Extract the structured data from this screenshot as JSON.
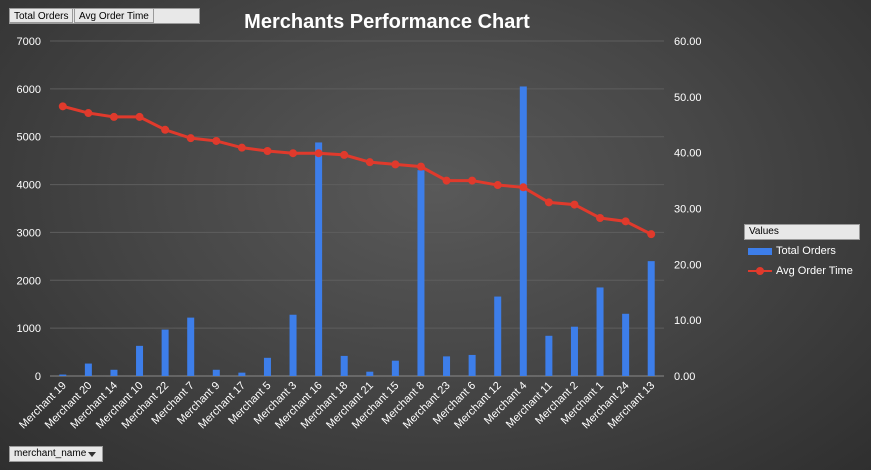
{
  "field_buttons": [
    "Total Orders",
    "Avg Order Time"
  ],
  "row_field_button": "merchant_name",
  "legend_title": "Values",
  "colors": {
    "bar": "#3d7eea",
    "line": "#e03a2c"
  },
  "chart_data": {
    "type": "bar",
    "title": "Merchants Performance Chart",
    "categories": [
      "Merchant 19",
      "Merchant 20",
      "Merchant 14",
      "Merchant 10",
      "Merchant 22",
      "Merchant 7",
      "Merchant 9",
      "Merchant 17",
      "Merchant 5",
      "Merchant 3",
      "Merchant 16",
      "Merchant 18",
      "Merchant 21",
      "Merchant 15",
      "Merchant 8",
      "Merchant 23",
      "Merchant 6",
      "Merchant 12",
      "Merchant 4",
      "Merchant 11",
      "Merchant 2",
      "Merchant 1",
      "Merchant 24",
      "Merchant 13"
    ],
    "series": [
      {
        "name": "Total Orders",
        "type": "bar",
        "axis": "left",
        "values": [
          30,
          260,
          130,
          630,
          970,
          1220,
          130,
          70,
          380,
          1280,
          4880,
          420,
          90,
          320,
          4300,
          410,
          440,
          1660,
          6050,
          840,
          1030,
          1850,
          1300,
          2400
        ]
      },
      {
        "name": "Avg Order Time",
        "type": "line",
        "axis": "right",
        "values": [
          48.3,
          47.1,
          46.4,
          46.4,
          44.1,
          42.6,
          42.1,
          40.9,
          40.3,
          39.9,
          39.9,
          39.6,
          38.3,
          37.9,
          37.5,
          35.0,
          35.0,
          34.2,
          33.8,
          31.1,
          30.7,
          28.3,
          27.7,
          25.4
        ]
      }
    ],
    "y_left": {
      "min": 0,
      "max": 7000,
      "ticks": [
        "0",
        "1000",
        "2000",
        "3000",
        "4000",
        "5000",
        "6000",
        "7000"
      ]
    },
    "y_right": {
      "min": 0,
      "max": 60,
      "ticks": [
        "0.00",
        "10.00",
        "20.00",
        "30.00",
        "40.00",
        "50.00",
        "60.00"
      ]
    },
    "grid": true,
    "legend_position": "right"
  }
}
